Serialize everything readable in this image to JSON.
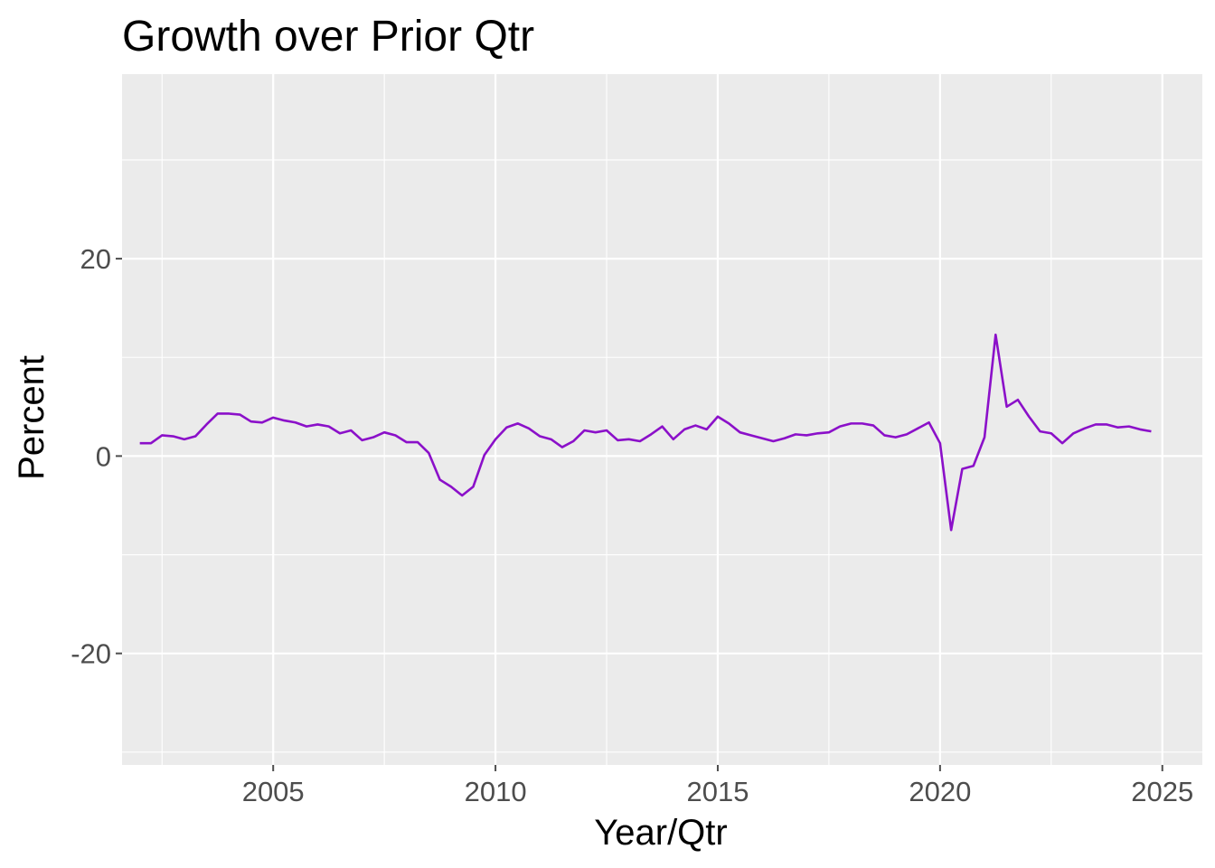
{
  "chart_data": {
    "type": "line",
    "title": "Growth over Prior Qtr",
    "xlabel": "Year/Qtr",
    "ylabel": "Percent",
    "xlim": [
      2001.6,
      2025.9
    ],
    "ylim": [
      -31.3,
      38.7
    ],
    "x_ticks": [
      2005,
      2010,
      2015,
      2020,
      2025
    ],
    "x_tick_labels": [
      "2005",
      "2010",
      "2015",
      "2020",
      "2025"
    ],
    "y_ticks": [
      20,
      0,
      -20
    ],
    "y_tick_labels": [
      "20",
      "0",
      "-20"
    ],
    "grid": true,
    "legend": "none",
    "colors": {
      "panel": "#ebebeb",
      "grid": "#ffffff",
      "line": "#8b10c9",
      "tick": "#4d4d4d"
    },
    "series": [
      {
        "x": [
          2002.0,
          2002.25,
          2002.5,
          2002.75,
          2003.0,
          2003.25,
          2003.5,
          2003.75,
          2004.0,
          2004.25,
          2004.5,
          2004.75,
          2005.0,
          2005.25,
          2005.5,
          2005.75,
          2006.0,
          2006.25,
          2006.5,
          2006.75,
          2007.0,
          2007.25,
          2007.5,
          2007.75,
          2008.0,
          2008.25,
          2008.5,
          2008.75,
          2009.0,
          2009.25,
          2009.5,
          2009.75,
          2010.0,
          2010.25,
          2010.5,
          2010.75,
          2011.0,
          2011.25,
          2011.5,
          2011.75,
          2012.0,
          2012.25,
          2012.5,
          2012.75,
          2013.0,
          2013.25,
          2013.5,
          2013.75,
          2014.0,
          2014.25,
          2014.5,
          2014.75,
          2015.0,
          2015.25,
          2015.5,
          2015.75,
          2016.0,
          2016.25,
          2016.5,
          2016.75,
          2017.0,
          2017.25,
          2017.5,
          2017.75,
          2018.0,
          2018.25,
          2018.5,
          2018.75,
          2019.0,
          2019.25,
          2019.5,
          2019.75,
          2020.0,
          2020.25,
          2020.5,
          2020.75,
          2021.0,
          2021.25,
          2021.5,
          2021.75,
          2022.0,
          2022.25,
          2022.5,
          2022.75,
          2023.0,
          2023.25,
          2023.5,
          2023.75,
          2024.0,
          2024.25,
          2024.5,
          2024.75
        ],
        "y": [
          1.3,
          1.3,
          2.1,
          2.0,
          1.7,
          2.0,
          3.2,
          4.3,
          4.3,
          4.2,
          3.5,
          3.4,
          3.9,
          3.6,
          3.4,
          3.0,
          3.2,
          3.0,
          2.3,
          2.6,
          1.6,
          1.9,
          2.4,
          2.1,
          1.4,
          1.4,
          0.3,
          -2.4,
          -3.1,
          -4.0,
          -3.1,
          0.1,
          1.7,
          2.9,
          3.3,
          2.8,
          2.0,
          1.7,
          0.9,
          1.5,
          2.6,
          2.4,
          2.6,
          1.6,
          1.7,
          1.5,
          2.2,
          3.0,
          1.7,
          2.7,
          3.1,
          2.7,
          4.0,
          3.3,
          2.4,
          2.1,
          1.8,
          1.5,
          1.8,
          2.2,
          2.1,
          2.3,
          2.4,
          3.0,
          3.3,
          3.3,
          3.1,
          2.1,
          1.9,
          2.2,
          2.8,
          3.4,
          1.3,
          -7.5,
          -1.3,
          -1.0,
          1.9,
          12.3,
          5.0,
          5.7,
          4.0,
          2.5,
          2.3,
          1.3,
          2.3,
          2.8,
          3.2,
          3.2,
          2.9,
          3.0,
          2.7,
          2.5
        ]
      }
    ]
  }
}
